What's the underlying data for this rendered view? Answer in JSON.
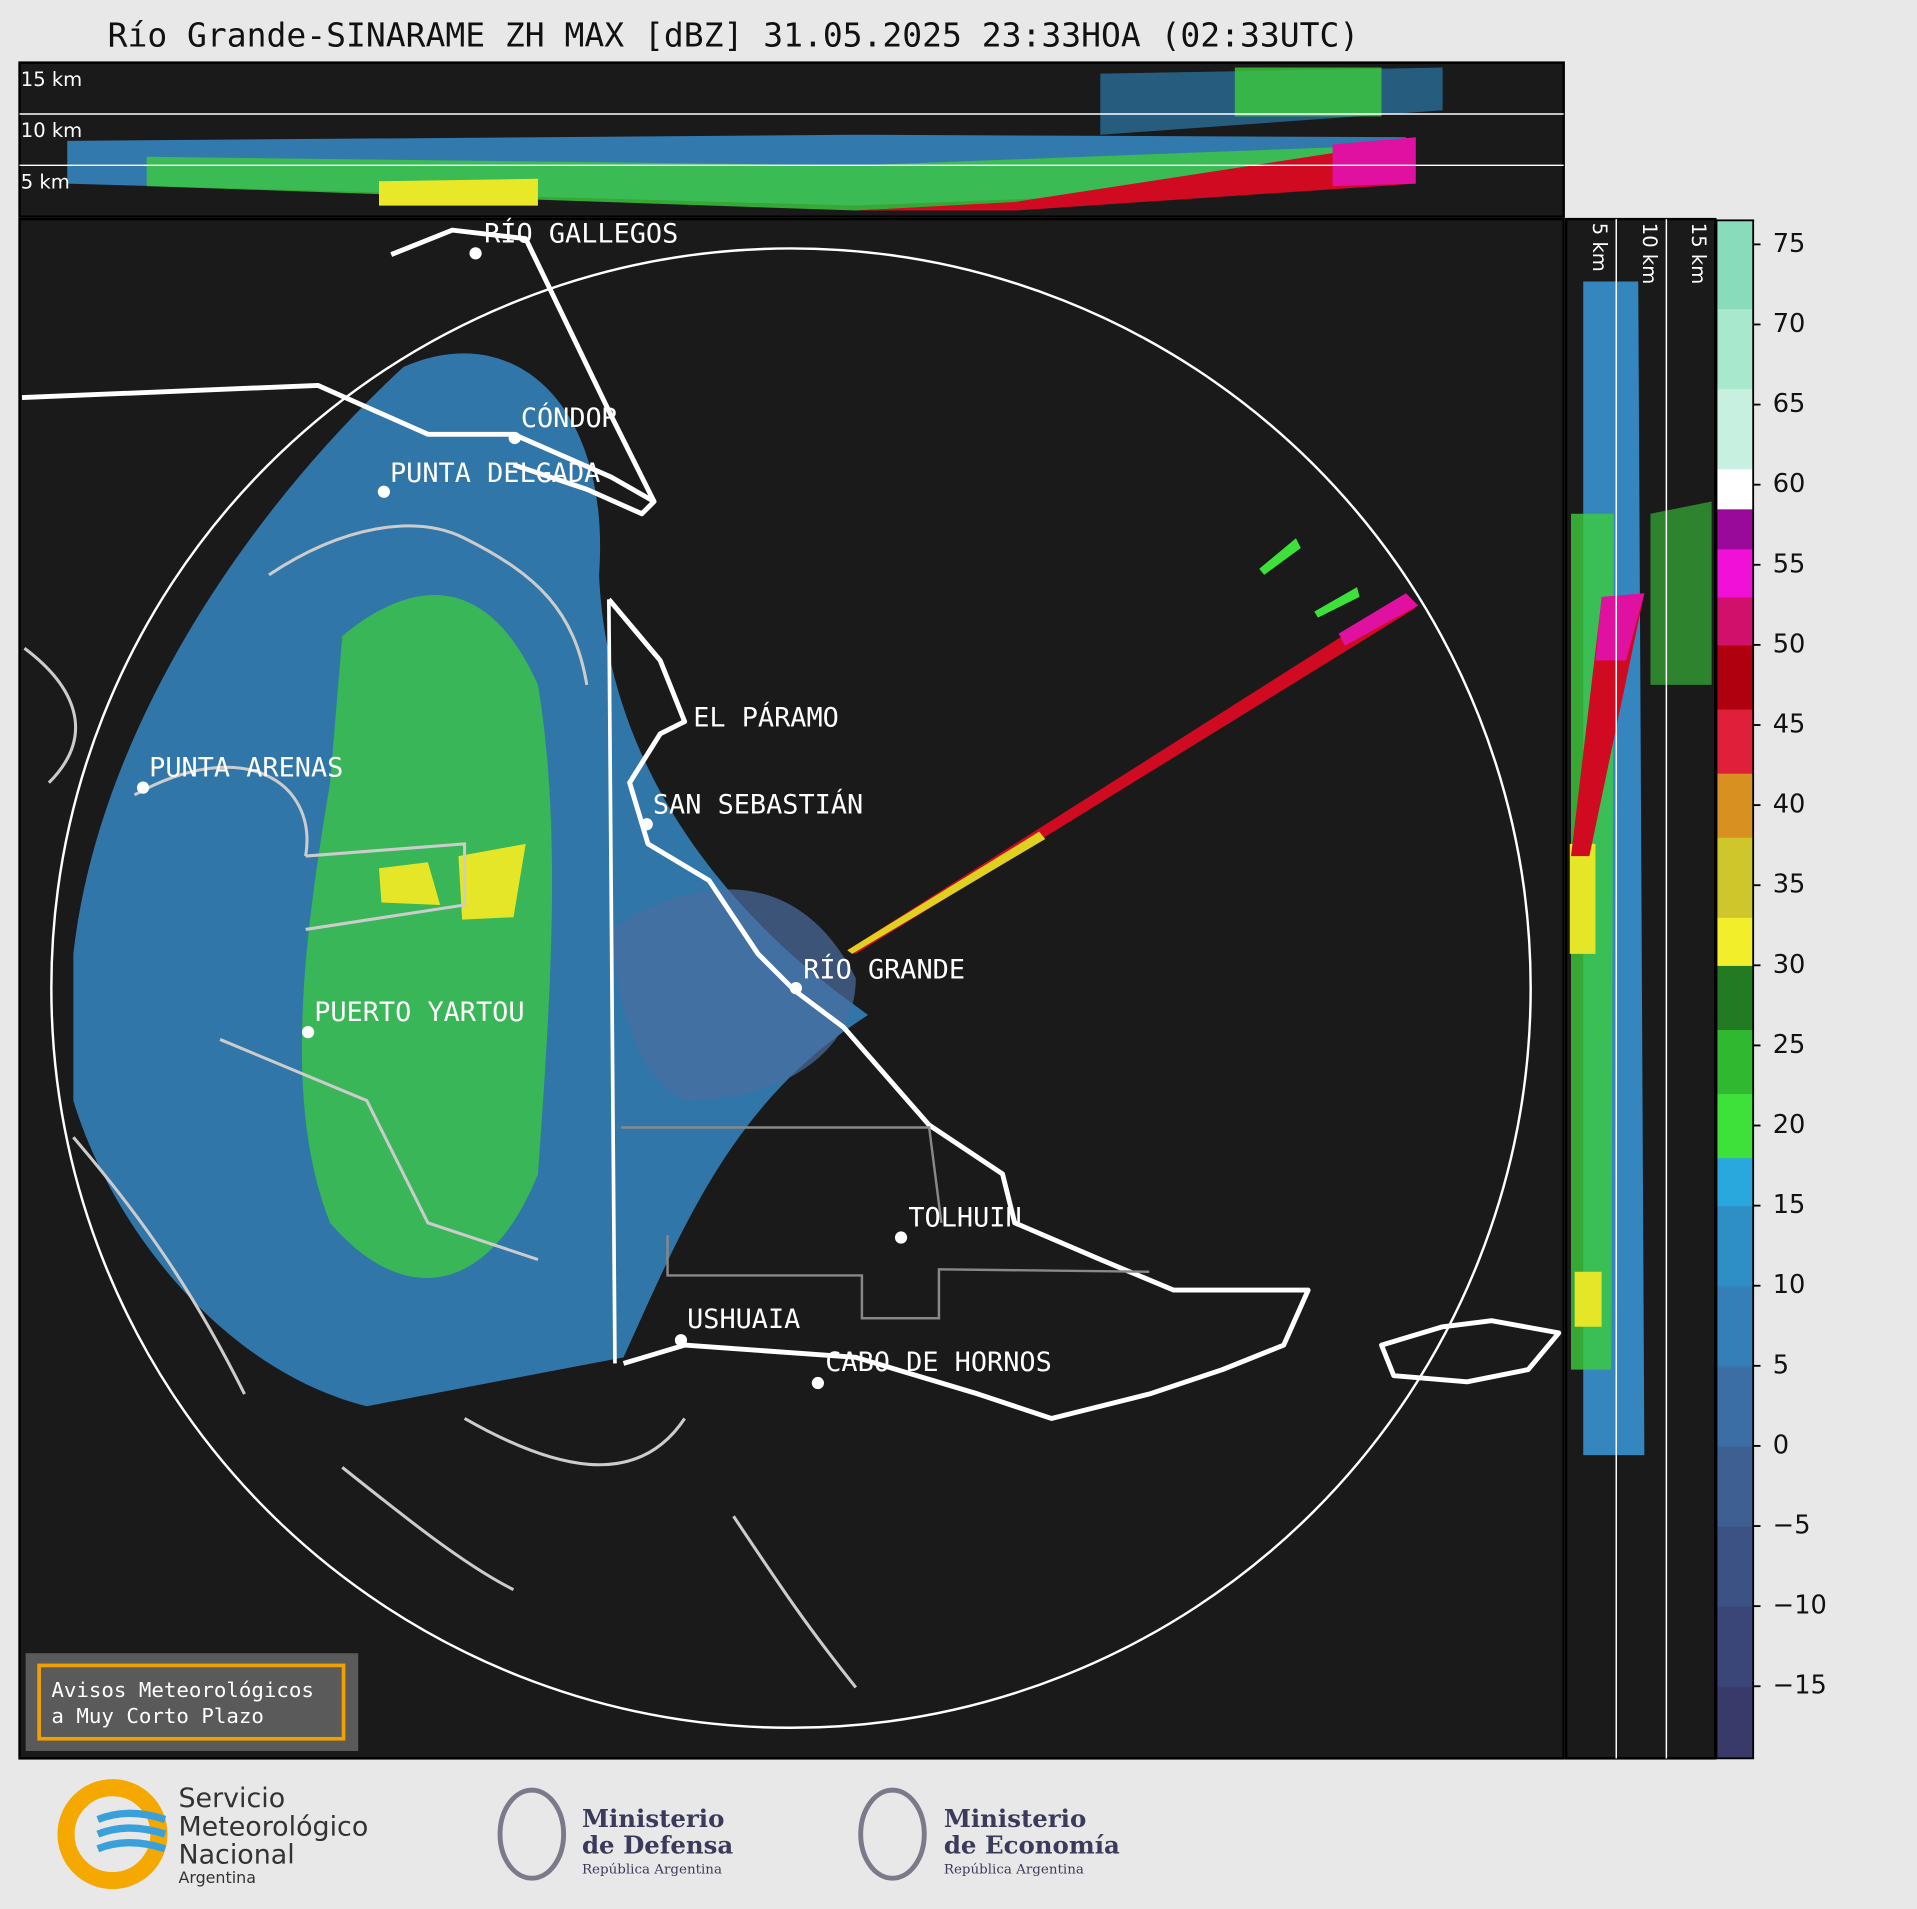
{
  "title": "Río Grande-SINARAME ZH MAX [dBZ] 31.05.2025 23:33HOA (02:33UTC)",
  "top_panel": {
    "height_labels": [
      "15 km",
      "10 km",
      "5 km"
    ]
  },
  "side_panel": {
    "height_labels": [
      "5 km",
      "10 km",
      "15 km"
    ]
  },
  "map": {
    "cities": [
      "RÍO GALLEGOS",
      "CÓNDOR",
      "PUNTA DELGADA",
      "EL PÁRAMO",
      "PUNTA ARENAS",
      "SAN SEBASTIÁN",
      "RÍO GRANDE",
      "PUERTO YARTOU",
      "TOLHUIN",
      "USHUAIA",
      "CABO DE HORNOS"
    ]
  },
  "notice": {
    "lines": [
      "Avisos Meteorológicos",
      "a Muy Corto Plazo"
    ]
  },
  "colorbar": {
    "range": [
      -19.5,
      76.5
    ],
    "ticks": [
      75,
      70,
      65,
      60,
      55,
      50,
      45,
      40,
      35,
      30,
      25,
      20,
      15,
      10,
      5,
      0,
      {
        "value": -5,
        "label": "−5"
      },
      {
        "value": -10,
        "label": "−10"
      },
      {
        "value": -15,
        "label": "−15"
      }
    ],
    "bands": [
      {
        "from": -19.5,
        "to": -15,
        "color": "#3a3a6a"
      },
      {
        "from": -15,
        "to": -10,
        "color": "#3b4678"
      },
      {
        "from": -10,
        "to": -5,
        "color": "#3c5284"
      },
      {
        "from": -5,
        "to": 0,
        "color": "#3d5f92"
      },
      {
        "from": 0,
        "to": 5,
        "color": "#3a6ea4"
      },
      {
        "from": 5,
        "to": 10,
        "color": "#347fb8"
      },
      {
        "from": 10,
        "to": 15,
        "color": "#2e8ec6"
      },
      {
        "from": 15,
        "to": 18,
        "color": "#28a8dc"
      },
      {
        "from": 18,
        "to": 22,
        "color": "#3ee03a"
      },
      {
        "from": 22,
        "to": 26,
        "color": "#30b830"
      },
      {
        "from": 26,
        "to": 30,
        "color": "#227a22"
      },
      {
        "from": 30,
        "to": 33,
        "color": "#f2ef2a"
      },
      {
        "from": 33,
        "to": 38,
        "color": "#cfc62c"
      },
      {
        "from": 38,
        "to": 42,
        "color": "#d89020"
      },
      {
        "from": 42,
        "to": 46,
        "color": "#e0203a"
      },
      {
        "from": 46,
        "to": 50,
        "color": "#b00010"
      },
      {
        "from": 50,
        "to": 53,
        "color": "#d0106a"
      },
      {
        "from": 53,
        "to": 56,
        "color": "#f010d8"
      },
      {
        "from": 56,
        "to": 58.5,
        "color": "#9a0a9a"
      },
      {
        "from": 58.5,
        "to": 61,
        "color": "#ffffff"
      },
      {
        "from": 61,
        "to": 66,
        "color": "#c8f0e0"
      },
      {
        "from": 66,
        "to": 71,
        "color": "#a8e8cc"
      },
      {
        "from": 71,
        "to": 76.5,
        "color": "#88dcbc"
      }
    ]
  },
  "logos": {
    "smn": [
      "Servicio",
      "Meteorológico",
      "Nacional",
      "Argentina"
    ],
    "defensa": [
      "Ministerio",
      "de Defensa",
      "República Argentina"
    ],
    "economia": [
      "Ministerio",
      "de Economía",
      "República Argentina"
    ]
  }
}
